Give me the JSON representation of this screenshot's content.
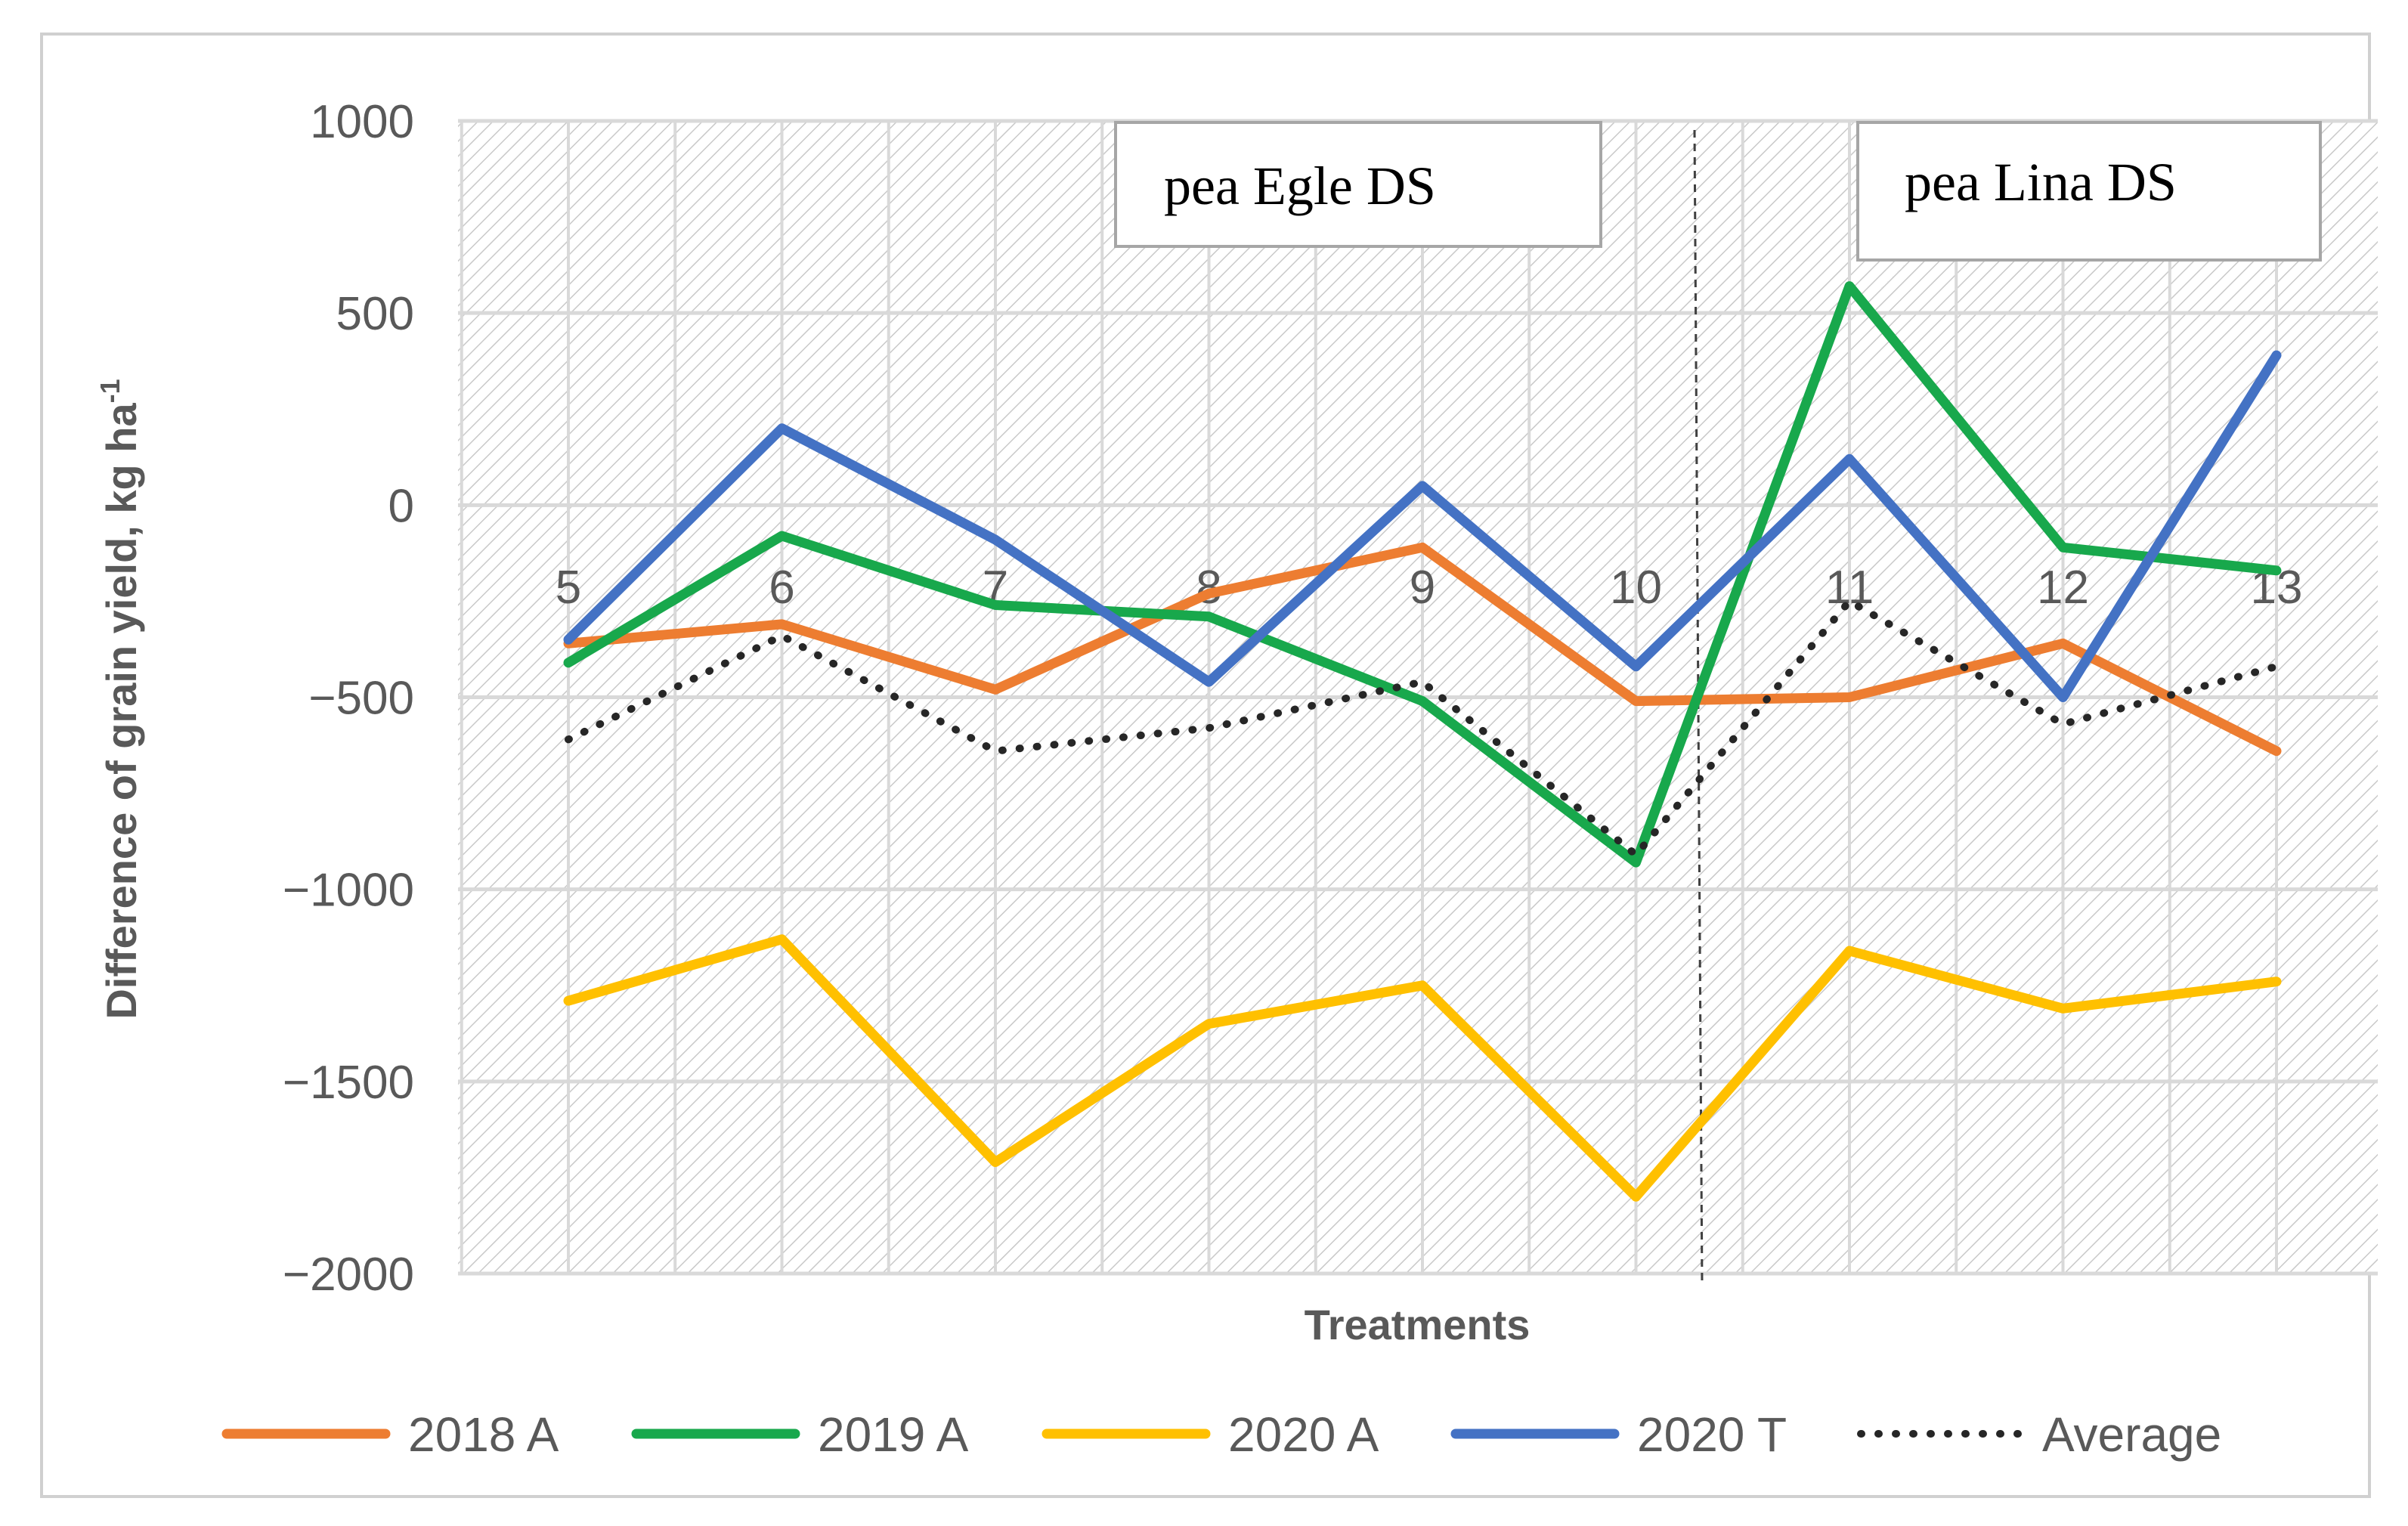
{
  "chart_data": {
    "type": "line",
    "title": "",
    "xlabel": "Treatments",
    "ylabel": "Difference of grain yield, kg ha",
    "ylabel_superscript": "-1",
    "ylim": [
      -2000,
      1000
    ],
    "yticks": [
      "1000",
      "500",
      "0",
      "−500",
      "−1000",
      "−1500",
      "−2000"
    ],
    "categories": [
      "5",
      "6",
      "7",
      "8",
      "9",
      "10",
      "11",
      "12",
      "13"
    ],
    "series": [
      {
        "name": "2018 A",
        "color": "#ED7D31",
        "dash": "solid",
        "values": [
          -360,
          -310,
          -480,
          -230,
          -110,
          -510,
          -500,
          -360,
          -640
        ]
      },
      {
        "name": "2019 A",
        "color": "#18A84C",
        "dash": "solid",
        "values": [
          -410,
          -80,
          -260,
          -290,
          -510,
          -930,
          570,
          -110,
          -170
        ]
      },
      {
        "name": "2020 A",
        "color": "#FFC000",
        "dash": "solid",
        "values": [
          -1290,
          -1130,
          -1710,
          -1350,
          -1250,
          -1800,
          -1160,
          -1310,
          -1240
        ]
      },
      {
        "name": "2020 T",
        "color": "#4472C4",
        "dash": "solid",
        "values": [
          -350,
          200,
          -90,
          -460,
          50,
          -420,
          120,
          -500,
          390
        ]
      },
      {
        "name": "Average",
        "color": "#262626",
        "dash": "dotted",
        "values": [
          -610,
          -340,
          -640,
          -580,
          -460,
          -910,
          -250,
          -570,
          -420
        ]
      }
    ],
    "annotations": [
      {
        "text": "pea Egle DS",
        "region": "treatments 5–10"
      },
      {
        "text": "pea Lina DS",
        "region": "treatments 11–13"
      }
    ],
    "legend_position": "bottom",
    "grid": true
  }
}
